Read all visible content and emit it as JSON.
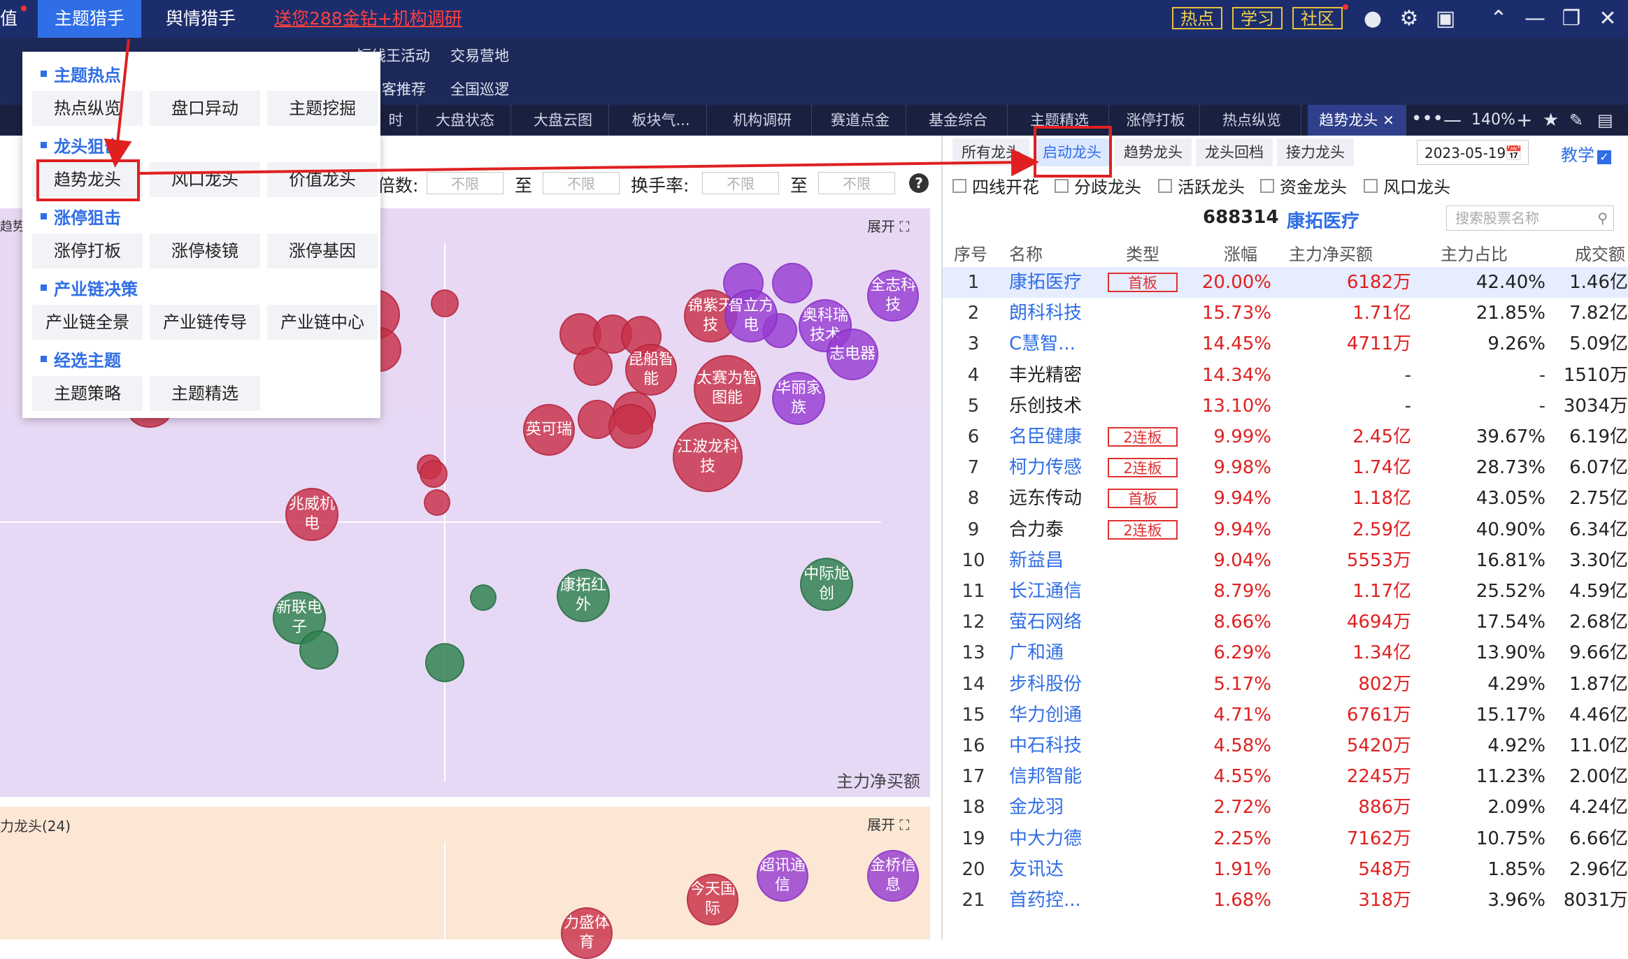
{
  "topbar": {
    "left_partial": "值",
    "tabs": [
      "主题猎手",
      "舆情猎手"
    ],
    "promo": "送您288金钻+机构调研",
    "buttons": [
      "热点",
      "学习",
      "社区"
    ]
  },
  "menubar": {
    "row1": [
      "短线王活动",
      "交易营地"
    ],
    "row2": [
      "客推荐",
      "全国巡逻"
    ]
  },
  "page_tabs": [
    "时",
    "大盘状态",
    "大盘云图",
    "板块气...",
    "机构调研",
    "赛道点金",
    "基金综合",
    "主题精选",
    "涨停打板",
    "热点纵览",
    "趋势龙头"
  ],
  "tabbar_right": {
    "zoom": "140%"
  },
  "dropdown": {
    "sections": [
      {
        "title": "主题热点",
        "items": [
          "热点纵览",
          "盘口异动",
          "主题挖掘"
        ]
      },
      {
        "title": "龙头狙击",
        "items": [
          "趋势龙头",
          "风口龙头",
          "价值龙头"
        ]
      },
      {
        "title": "涨停狙击",
        "items": [
          "涨停打板",
          "涨停棱镜",
          "涨停基因"
        ]
      },
      {
        "title": "产业链决策",
        "items": [
          "产业链全景",
          "产业链传导",
          "产业链中心"
        ]
      },
      {
        "title": "经选主题",
        "items": [
          "主题策略",
          "主题精选"
        ]
      }
    ]
  },
  "filters": {
    "label1": "倍数:",
    "label2": "换手率:",
    "to": "至",
    "placeholder": "不限"
  },
  "chart1": {
    "title_partial": "趋势龙",
    "expand": "展开",
    "xlabel": "主力净买额",
    "bubbles": [
      {
        "label": "锦紫天技"
      },
      {
        "label": "智立方电"
      },
      {
        "label": "奥科瑞技术"
      },
      {
        "label": "全志科技"
      },
      {
        "label": "昆船智能"
      },
      {
        "label": "太赛为智图能"
      },
      {
        "label": "华丽家族"
      },
      {
        "label": "英可瑞"
      },
      {
        "label": "江波龙科技"
      },
      {
        "label": "兆威机电"
      },
      {
        "label": "康拓红外"
      },
      {
        "label": "中际旭创"
      },
      {
        "label": "新联电子"
      },
      {
        "label": "志电器"
      }
    ]
  },
  "chart2": {
    "title_partial": "力龙头(24)",
    "expand": "展开",
    "bubbles": [
      {
        "label": "超讯通信"
      },
      {
        "label": "金桥信息"
      },
      {
        "label": "今天国际"
      },
      {
        "label": "力盛体育"
      }
    ]
  },
  "right": {
    "tabs": [
      "所有龙头",
      "启动龙头",
      "趋势龙头",
      "龙头回档",
      "接力龙头"
    ],
    "date": "2023-05-19",
    "teach": "教学",
    "checks": [
      "四线开花",
      "分歧龙头",
      "活跃龙头",
      "资金龙头",
      "风口龙头"
    ],
    "stock_code": "688314",
    "stock_name": "康拓医疗",
    "search_placeholder": "搜索股票名称",
    "headers": [
      "序号",
      "名称",
      "类型",
      "涨幅",
      "主力净买额",
      "主力占比",
      "成交额"
    ],
    "rows": [
      {
        "seq": "1",
        "name": "康拓医疗",
        "type": "首板",
        "chg": "20.00%",
        "net": "6182万",
        "pct": "42.40%",
        "amt": "1.46亿"
      },
      {
        "seq": "2",
        "name": "朗科科技",
        "type": "",
        "chg": "15.73%",
        "net": "1.71亿",
        "pct": "21.85%",
        "amt": "7.82亿"
      },
      {
        "seq": "3",
        "name": "C慧智...",
        "type": "",
        "chg": "14.45%",
        "net": "4711万",
        "pct": "9.26%",
        "amt": "5.09亿"
      },
      {
        "seq": "4",
        "name": "丰光精密",
        "type": "",
        "chg": "14.34%",
        "net": "-",
        "pct": "-",
        "amt": "1510万"
      },
      {
        "seq": "5",
        "name": "乐创技术",
        "type": "",
        "chg": "13.10%",
        "net": "-",
        "pct": "-",
        "amt": "3034万"
      },
      {
        "seq": "6",
        "name": "名臣健康",
        "type": "2连板",
        "chg": "9.99%",
        "net": "2.45亿",
        "pct": "39.67%",
        "amt": "6.19亿"
      },
      {
        "seq": "7",
        "name": "柯力传感",
        "type": "2连板",
        "chg": "9.98%",
        "net": "1.74亿",
        "pct": "28.73%",
        "amt": "6.07亿"
      },
      {
        "seq": "8",
        "name": "远东传动",
        "type": "首板",
        "chg": "9.94%",
        "net": "1.18亿",
        "pct": "43.05%",
        "amt": "2.75亿"
      },
      {
        "seq": "9",
        "name": "合力泰",
        "type": "2连板",
        "chg": "9.94%",
        "net": "2.59亿",
        "pct": "40.90%",
        "amt": "6.34亿"
      },
      {
        "seq": "10",
        "name": "新益昌",
        "type": "",
        "chg": "9.04%",
        "net": "5553万",
        "pct": "16.81%",
        "amt": "3.30亿"
      },
      {
        "seq": "11",
        "name": "长江通信",
        "type": "",
        "chg": "8.79%",
        "net": "1.17亿",
        "pct": "25.52%",
        "amt": "4.59亿"
      },
      {
        "seq": "12",
        "name": "萤石网络",
        "type": "",
        "chg": "8.66%",
        "net": "4694万",
        "pct": "17.54%",
        "amt": "2.68亿"
      },
      {
        "seq": "13",
        "name": "广和通",
        "type": "",
        "chg": "6.29%",
        "net": "1.34亿",
        "pct": "13.90%",
        "amt": "9.66亿"
      },
      {
        "seq": "14",
        "name": "步科股份",
        "type": "",
        "chg": "5.17%",
        "net": "802万",
        "pct": "4.29%",
        "amt": "1.87亿"
      },
      {
        "seq": "15",
        "name": "华力创通",
        "type": "",
        "chg": "4.71%",
        "net": "6761万",
        "pct": "15.17%",
        "amt": "4.46亿"
      },
      {
        "seq": "16",
        "name": "中石科技",
        "type": "",
        "chg": "4.58%",
        "net": "5420万",
        "pct": "4.92%",
        "amt": "11.0亿"
      },
      {
        "seq": "17",
        "name": "信邦智能",
        "type": "",
        "chg": "4.55%",
        "net": "2245万",
        "pct": "11.23%",
        "amt": "2.00亿"
      },
      {
        "seq": "18",
        "name": "金龙羽",
        "type": "",
        "chg": "2.72%",
        "net": "886万",
        "pct": "2.09%",
        "amt": "4.24亿"
      },
      {
        "seq": "19",
        "name": "中大力德",
        "type": "",
        "chg": "2.25%",
        "net": "7162万",
        "pct": "10.75%",
        "amt": "6.66亿"
      },
      {
        "seq": "20",
        "name": "友讯达",
        "type": "",
        "chg": "1.91%",
        "net": "548万",
        "pct": "1.85%",
        "amt": "2.96亿"
      },
      {
        "seq": "21",
        "name": "首药控...",
        "type": "",
        "chg": "1.68%",
        "net": "318万",
        "pct": "3.96%",
        "amt": "8031万"
      }
    ]
  }
}
